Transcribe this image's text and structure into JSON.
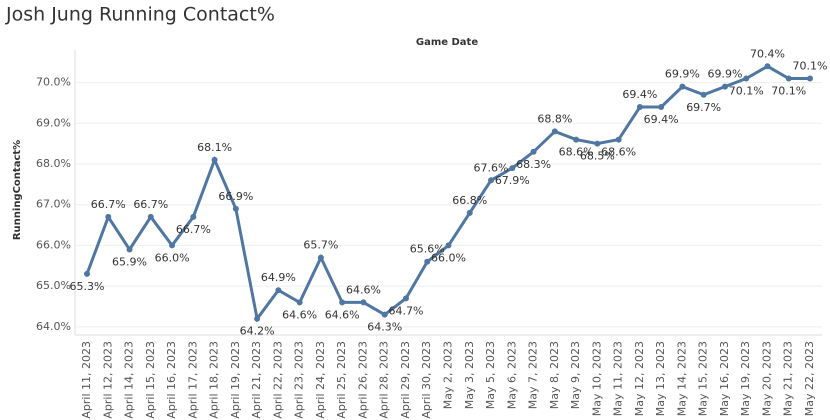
{
  "chart_data": {
    "type": "line",
    "title": "Josh Jung Running Contact%",
    "x_label": "Game Date",
    "y_label": "RunningContact%",
    "categories": [
      "April 11, 2023",
      "April 12, 2023",
      "April 14, 2023",
      "April 15, 2023",
      "April 16, 2023",
      "April 17, 2023",
      "April 18, 2023",
      "April 19, 2023",
      "April 21, 2023",
      "April 22, 2023",
      "April 23, 2023",
      "April 24, 2023",
      "April 25, 2023",
      "April 26, 2023",
      "April 28, 2023",
      "April 29, 2023",
      "April 30, 2023",
      "May 2, 2023",
      "May 3, 2023",
      "May 5, 2023",
      "May 6, 2023",
      "May 7, 2023",
      "May 8, 2023",
      "May 9, 2023",
      "May 10, 2023",
      "May 11, 2023",
      "May 12, 2023",
      "May 13, 2023",
      "May 14, 2023",
      "May 15, 2023",
      "May 16, 2023",
      "May 19, 2023",
      "May 20, 2023",
      "May 21, 2023",
      "May 22, 2023"
    ],
    "series": [
      {
        "name": "RunningContact%",
        "color": "#4f77a2",
        "values": [
          65.3,
          66.7,
          65.9,
          66.7,
          66.0,
          66.7,
          68.1,
          66.9,
          64.2,
          64.9,
          64.6,
          65.7,
          64.6,
          64.6,
          64.3,
          64.7,
          65.6,
          66.0,
          66.8,
          67.6,
          67.9,
          68.3,
          68.8,
          68.6,
          68.5,
          68.6,
          69.4,
          69.4,
          69.9,
          69.7,
          69.9,
          70.1,
          70.4,
          70.1,
          70.1
        ],
        "value_labels": [
          "65.3%",
          "66.7%",
          "65.9%",
          "66.7%",
          "66.0%",
          "66.7%",
          "68.1%",
          "66.9%",
          "64.2%",
          "64.9%",
          "64.6%",
          "65.7%",
          "64.6%",
          "64.6%",
          "64.3%",
          "64.7%",
          "65.6%",
          "66.0%",
          "66.8%",
          "67.6%",
          "67.9%",
          "68.3%",
          "68.8%",
          "68.6%",
          "68.5%",
          "68.6%",
          "69.4%",
          "69.4%",
          "69.9%",
          "69.7%",
          "69.9%",
          "70.1%",
          "70.4%",
          "70.1%",
          "70.1%"
        ]
      }
    ],
    "ylim": [
      63.8,
      70.8
    ],
    "yticks": [
      {
        "value": 64,
        "label": "64.0%"
      },
      {
        "value": 65,
        "label": "65.0%"
      },
      {
        "value": 66,
        "label": "66.0%"
      },
      {
        "value": 67,
        "label": "67.0%"
      },
      {
        "value": 68,
        "label": "68.0%"
      },
      {
        "value": 69,
        "label": "69.0%"
      },
      {
        "value": 70,
        "label": "70.0%"
      }
    ],
    "grid": true
  }
}
